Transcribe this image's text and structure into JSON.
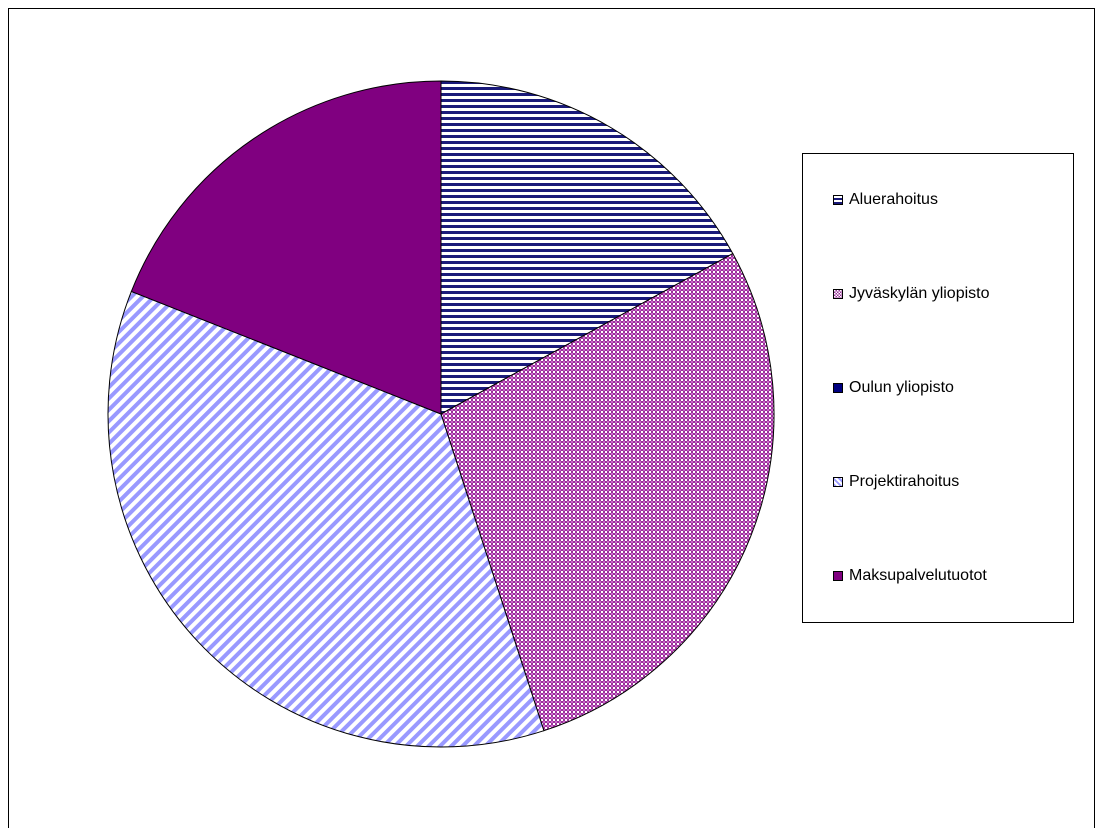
{
  "chart_data": {
    "type": "pie",
    "title": "",
    "legend_position": "right",
    "series": [
      {
        "name": "",
        "slices": [
          {
            "label": "Aluerahoitus",
            "value": 17,
            "color": "#1a1a7a",
            "pattern": "horizontal-lines"
          },
          {
            "label": "Jyväskylän yliopisto",
            "value": 28,
            "color": "#993399",
            "pattern": "crosshatch"
          },
          {
            "label": "Oulun yliopisto",
            "value": 0,
            "color": "#000080",
            "pattern": "solid"
          },
          {
            "label": "Projektirahoitus",
            "value": 36,
            "color": "#9999ff",
            "pattern": "diagonal-lines"
          },
          {
            "label": "Maksupalvelutuotot",
            "value": 19,
            "color": "#800080",
            "pattern": "solid"
          }
        ]
      }
    ]
  }
}
